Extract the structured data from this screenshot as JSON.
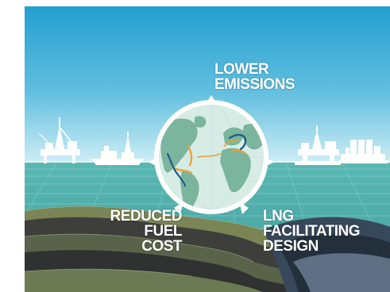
{
  "colors": {
    "sky_top": "#2aa1d1",
    "sky_bottom": "#bfe6f2",
    "sea": "#4fb0ad",
    "globe_ocean": "#d7ebe5",
    "globe_land": "#7bb39c",
    "route_orange": "#e6a13a",
    "route_blue": "#1f5c86",
    "strata_olive": "#6f7a4a",
    "strata_dark": "#3a3a3a"
  },
  "labels": {
    "top_line1": "LOWER",
    "top_line2": "EMISSIONS",
    "left_line1": "REDUCED FUEL",
    "left_line2": "COST",
    "right_line1": "LNG FACILITATING",
    "right_line2": "DESIGN"
  },
  "icons": [
    "drilling-rig-icon",
    "drillship-icon",
    "semi-submersible-rig-icon",
    "lng-storage-tanks-icon",
    "globe-icon"
  ]
}
